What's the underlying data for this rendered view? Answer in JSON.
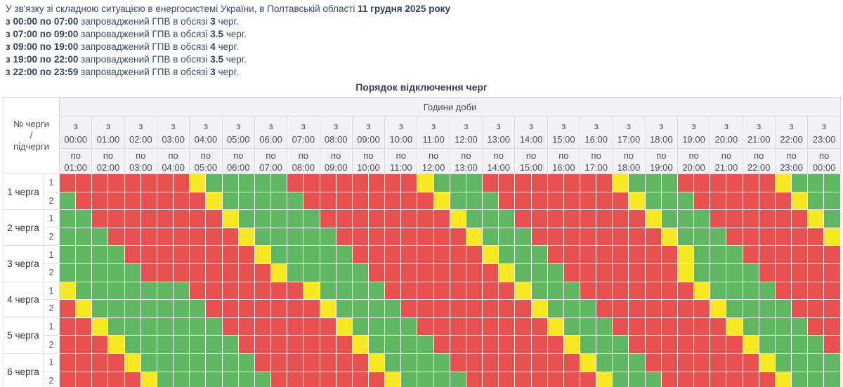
{
  "intro": {
    "line1_normal": "У зв'язку зі складною ситуацією в енергосистемі України, в Полтавській області",
    "line1_bold": "11 грудня 2025 року",
    "lines": [
      {
        "bold": "з 00:00 по 07:00",
        "mid": "запроваджений ГПВ в обсязі",
        "num": "3",
        "tail": "черг."
      },
      {
        "bold": "з 07:00 по 09:00",
        "mid": "запроваджений ГПВ в обсязі",
        "num": "3.5",
        "tail": "черг."
      },
      {
        "bold": "з 09:00 по 19:00",
        "mid": "запроваджений ГПВ в обсязі",
        "num": "4",
        "tail": "черг."
      },
      {
        "bold": "з 19:00 по 22:00",
        "mid": "запроваджений ГПВ в обсязі",
        "num": "3.5",
        "tail": "черг."
      },
      {
        "bold": "з 22:00 по 23:59",
        "mid": "запроваджений ГПВ в обсязі",
        "num": "3",
        "tail": "черг."
      }
    ]
  },
  "table": {
    "title": "Порядок відключення черг",
    "hours_header": "Години доби",
    "corner_lines": [
      "№ черги",
      "/",
      "підчерги"
    ],
    "from_prefix": "з",
    "to_prefix": "по",
    "from_times": [
      "00:00",
      "01:00",
      "02:00",
      "03:00",
      "04:00",
      "05:00",
      "06:00",
      "07:00",
      "08:00",
      "09:00",
      "10:00",
      "11:00",
      "12:00",
      "13:00",
      "14:00",
      "15:00",
      "16:00",
      "17:00",
      "18:00",
      "19:00",
      "20:00",
      "21:00",
      "22:00",
      "23:00"
    ],
    "to_times": [
      "01:00",
      "02:00",
      "03:00",
      "04:00",
      "05:00",
      "06:00",
      "07:00",
      "08:00",
      "09:00",
      "10:00",
      "11:00",
      "12:00",
      "13:00",
      "14:00",
      "15:00",
      "16:00",
      "17:00",
      "18:00",
      "19:00",
      "20:00",
      "21:00",
      "22:00",
      "23:00",
      "00:00"
    ],
    "colors": {
      "R": "#e85150",
      "G": "#5fb663",
      "Y": "#f7e822"
    },
    "legend_meaning": {
      "R": "off",
      "G": "on",
      "Y": "possible-off"
    },
    "queues": [
      {
        "label": "1 черга",
        "sub": [
          {
            "num": "1",
            "cells": "RRRRRRRRYGGGGGRRRRRRRRYGGGRRRRRRRRYGGGRRRRRRYGGG"
          },
          {
            "num": "2",
            "cells": "GRRRRRRRRYGGGGGRRRRRRRRYGGGRRRRRRRRYGGGRRRRRRYGG"
          }
        ]
      },
      {
        "label": "2 черга",
        "sub": [
          {
            "num": "1",
            "cells": "GGRRRRRRRRYGGGGGRRRRRRRRYGGGRRRRRRRRYGGGRRRRRRYG"
          },
          {
            "num": "2",
            "cells": "GGGRRRRRRRRYGGGGGRRRRRRRRYGGGRRRRRRRRYGGGRRRRRRY"
          }
        ]
      },
      {
        "label": "3 черга",
        "sub": [
          {
            "num": "1",
            "cells": "GGGGRRRRRRRRYGGGGGRRRRRRRRYGGGRRRRRRRRYGGGRRRRRR"
          },
          {
            "num": "2",
            "cells": "GGGGGRRRRRRRRYGGGGGRRRRRRRRYGGGRRRRRRRYGGGGRRRRR"
          }
        ]
      },
      {
        "label": "4 черга",
        "sub": [
          {
            "num": "1",
            "cells": "YGGGGGGGRRRRRRRYGGGGRRRRRRRRYGGGRRRRRRRYGGGGRRRR"
          },
          {
            "num": "2",
            "cells": "RYGGGGGGGRRRRRRRYGGGGRRRRRRRRYGGGRRRRRRRYGGGGRRR"
          }
        ]
      },
      {
        "label": "5 черга",
        "sub": [
          {
            "num": "1",
            "cells": "RRYGGGGGGGRRRRRRRYGGGGRRRRRRRRYGGGRRRRRRRYGGGGRR"
          },
          {
            "num": "2",
            "cells": "RRRYGGGGGGGRRRRRRRYGGGGRRRRRRRRYGGGRRRRRRRYGGGGR"
          }
        ]
      },
      {
        "label": "6 черга",
        "sub": [
          {
            "num": "1",
            "cells": "RRRRYGGGGGGGRRRRRRRYGGGGRRRRRRRRYGGGRRRRRRRYGGGG"
          },
          {
            "num": "2",
            "cells": "RRRRRYGGGGGGGRRRRRRRYGGGGRRRRRRRRYGGGRRRRRRRYGGG"
          }
        ]
      }
    ]
  }
}
